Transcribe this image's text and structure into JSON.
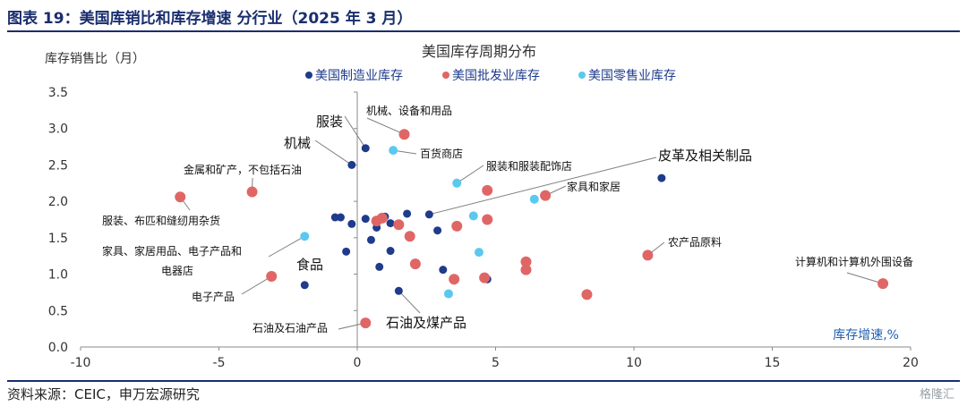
{
  "header": {
    "title": "图表 19：美国库销比和库存增速 分行业（2025 年 3 月）"
  },
  "footer": {
    "source": "资料来源：CEIC，申万宏源研究",
    "watermark": "格隆汇"
  },
  "colors": {
    "navy": "#1a2e6e",
    "manufacturing": "#1f3b8c",
    "wholesale": "#e06666",
    "retail": "#5bc8ef",
    "axis_text": "#333333"
  },
  "chart_data": {
    "type": "scatter",
    "title": "美国库存周期分布",
    "ylabel": "库存销售比（月）",
    "xlabel": "库存增速,%",
    "xlim": [
      -10,
      20
    ],
    "ylim": [
      0,
      3.5
    ],
    "xticks": [
      "-10",
      "-5",
      "0",
      "5",
      "10",
      "15",
      "20"
    ],
    "yticks": [
      "0.0",
      "0.5",
      "1.0",
      "1.5",
      "2.0",
      "2.5",
      "3.0",
      "3.5"
    ],
    "series": [
      {
        "name": "美国制造业库存",
        "color": "#1f3b8c",
        "points": [
          [
            0.3,
            2.73
          ],
          [
            -0.2,
            2.5
          ],
          [
            11.0,
            2.32
          ],
          [
            -0.8,
            1.78
          ],
          [
            -0.6,
            1.78
          ],
          [
            -0.2,
            1.69
          ],
          [
            0.3,
            1.76
          ],
          [
            0.7,
            1.64
          ],
          [
            1.0,
            1.79
          ],
          [
            1.8,
            1.83
          ],
          [
            2.6,
            1.82
          ],
          [
            2.9,
            1.6
          ],
          [
            1.2,
            1.7
          ],
          [
            0.5,
            1.47
          ],
          [
            1.2,
            1.32
          ],
          [
            -0.4,
            1.31
          ],
          [
            0.8,
            1.1
          ],
          [
            3.1,
            1.06
          ],
          [
            -1.9,
            0.85
          ],
          [
            1.5,
            0.77
          ],
          [
            4.7,
            0.93
          ]
        ]
      },
      {
        "name": "美国批发业库存",
        "color": "#e06666",
        "points": [
          [
            1.7,
            2.92
          ],
          [
            -3.8,
            2.13
          ],
          [
            -6.4,
            2.06
          ],
          [
            4.7,
            2.15
          ],
          [
            6.8,
            2.08
          ],
          [
            0.7,
            1.73
          ],
          [
            0.9,
            1.77
          ],
          [
            1.5,
            1.68
          ],
          [
            3.6,
            1.66
          ],
          [
            4.7,
            1.75
          ],
          [
            1.9,
            1.52
          ],
          [
            10.5,
            1.26
          ],
          [
            6.1,
            1.17
          ],
          [
            6.1,
            1.06
          ],
          [
            2.1,
            1.14
          ],
          [
            3.5,
            0.93
          ],
          [
            4.6,
            0.95
          ],
          [
            8.3,
            0.72
          ],
          [
            19.0,
            0.87
          ],
          [
            -3.1,
            0.97
          ],
          [
            0.3,
            0.33
          ]
        ]
      },
      {
        "name": "美国零售业库存",
        "color": "#5bc8ef",
        "points": [
          [
            1.3,
            2.7
          ],
          [
            3.6,
            2.25
          ],
          [
            6.4,
            2.03
          ],
          [
            4.2,
            1.8
          ],
          [
            -1.9,
            1.52
          ],
          [
            4.4,
            1.3
          ],
          [
            3.3,
            0.73
          ]
        ]
      }
    ],
    "annotations": [
      {
        "text": "服装",
        "big": true
      },
      {
        "text": "机械、设备和用品",
        "big": false
      },
      {
        "text": "机械",
        "big": true
      },
      {
        "text": "百货商店",
        "big": false
      },
      {
        "text": "金属和矿产，不包括石油",
        "big": false
      },
      {
        "text": "服装和服装配饰店",
        "big": false
      },
      {
        "text": "皮革及相关制品",
        "big": true
      },
      {
        "text": "家具和家居",
        "big": false
      },
      {
        "text": "服装、布匹和缝纫用杂货",
        "big": false
      },
      {
        "text": "农产品原料",
        "big": false
      },
      {
        "text": "家具、家居用品、电子产品和",
        "big": false
      },
      {
        "text": "电器店",
        "big": false
      },
      {
        "text": "食品",
        "big": true
      },
      {
        "text": "计算机和计算机外围设备",
        "big": false
      },
      {
        "text": "电子产品",
        "big": false
      },
      {
        "text": "石油及石油产品",
        "big": false
      },
      {
        "text": "石油及煤产品",
        "big": true
      }
    ]
  }
}
